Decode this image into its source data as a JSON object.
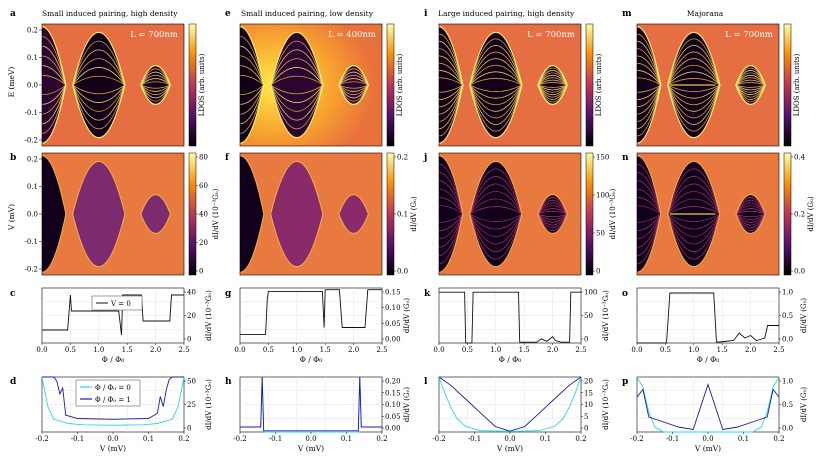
{
  "figure": {
    "colors": {
      "cyan": "#2ad7e6",
      "navy": "#1c1aa6",
      "gold": "#d9cf4f"
    },
    "columns": [
      {
        "title": "Small induced pairing, high density",
        "inset": "L = 700nm",
        "row_labels": [
          "a",
          "b",
          "c",
          "d"
        ]
      },
      {
        "title": "Small induced pairing, low density",
        "inset": "L = 400nm",
        "row_labels": [
          "e",
          "f",
          "g",
          "h"
        ]
      },
      {
        "title": "Large induced pairing, high density",
        "inset": "L = 700nm",
        "row_labels": [
          "i",
          "j",
          "k",
          "l"
        ]
      },
      {
        "title": "Majorana",
        "inset": "L = 700nm",
        "row_labels": [
          "m",
          "n",
          "o",
          "p"
        ]
      }
    ],
    "labels": {
      "energy_axis": "E (meV)",
      "bias_axis": "V (mV)",
      "ldos_colorbar": "LDOS (arb. units)",
      "flux_axis": "Φ / Φ₀",
      "legend_zero_bias": "V = 0",
      "legend_phi0": "Φ / Φ₀ = 0",
      "legend_phi1": "Φ / Φ₀ = 1"
    },
    "cond_labels": [
      "dI/dV (10⁻³G₀)",
      "dI/dV (G₀)",
      "dI/dV (10⁻³G₀)",
      "dI/dV (G₀)"
    ],
    "ticks": {
      "energy": [
        "0.2",
        "0.1",
        "0.0",
        "-0.1",
        "-0.2"
      ],
      "voltage": [
        "0.2",
        "0.1",
        "0.0",
        "-0.1",
        "-0.2"
      ],
      "flux": [
        "0.0",
        "0.5",
        "1.0",
        "1.5",
        "2.0",
        "2.5"
      ],
      "vline": [
        "-0.2",
        "-0.1",
        "0.0",
        "0.1",
        "0.2"
      ],
      "colorbar_b": [
        "80",
        "60",
        "40",
        "20",
        "0"
      ],
      "colorbar_f": [
        "0.2",
        "0.1",
        "0.0"
      ],
      "colorbar_j": [
        "150",
        "100",
        "50",
        "0"
      ],
      "colorbar_n": [
        "0.4",
        "0.2",
        "0.0"
      ],
      "c_right": [
        "40",
        "20",
        "0"
      ],
      "g_right": [
        "0.15",
        "0.10",
        "0.05",
        "0.00"
      ],
      "k_right": [
        "100",
        "50",
        "0"
      ],
      "o_right": [
        "1.0",
        "0.5",
        "0.0"
      ],
      "d_right": [
        "50",
        "25",
        "0"
      ],
      "h_right": [
        "0.20",
        "0.15",
        "0.10",
        "0.05",
        "0.00"
      ],
      "l_right": [
        "20",
        "15",
        "10",
        "5",
        "0"
      ],
      "p_right": [
        "1.0",
        "0.5",
        "0.0"
      ]
    }
  },
  "chart_data": [
    {
      "panel": "a",
      "type": "heatmap",
      "title": "Small induced pairing, high density",
      "xlabel": "Φ / Φ₀",
      "ylabel": "E (meV)",
      "colorbar": "LDOS (arb. units)",
      "xlim": [
        0,
        2.5
      ],
      "ylim": [
        -0.22,
        0.22
      ],
      "annotation": "L = 700nm",
      "lobes": [
        {
          "center": 1.0,
          "half_width": 0.45
        },
        {
          "center": 2.0,
          "half_width": 0.25
        }
      ]
    },
    {
      "panel": "b",
      "type": "heatmap",
      "xlabel": "Φ / Φ₀",
      "ylabel": "V (mV)",
      "colorbar": "dI/dV (10⁻³G₀)",
      "colorbar_range": [
        0,
        80
      ],
      "ylim": [
        -0.22,
        0.22
      ],
      "gap_half_height_mV": 0.2,
      "lobes": [
        {
          "center": 0.0,
          "half_width": 0.4,
          "half_height": 0.21
        },
        {
          "center": 1.0,
          "half_width": 0.45,
          "half_height": 0.19
        },
        {
          "center": 2.0,
          "half_width": 0.25,
          "half_height": 0.065
        }
      ]
    },
    {
      "panel": "c",
      "type": "line",
      "xlabel": "Φ / Φ₀",
      "ylabel_right": "dI/dV (10⁻³G₀)",
      "xlim": [
        0,
        2.5
      ],
      "ylim": [
        0,
        55
      ],
      "legend": [
        "V = 0"
      ],
      "series": [
        {
          "name": "V = 0",
          "x": [
            0.0,
            0.45,
            0.5,
            0.52,
            0.6,
            1.35,
            1.4,
            1.42,
            1.6,
            1.75,
            1.78,
            2.25,
            2.28,
            2.5
          ],
          "y": [
            13,
            13,
            48,
            32,
            32,
            32,
            8,
            48,
            48,
            48,
            22,
            22,
            48,
            48
          ]
        }
      ]
    },
    {
      "panel": "d",
      "type": "line",
      "xlabel": "V (mV)",
      "ylabel_right": "dI/dV (10⁻³G₀)",
      "xlim": [
        -0.24,
        0.24
      ],
      "ylim": [
        0,
        65
      ],
      "legend": [
        "Φ / Φ₀ = 0",
        "Φ / Φ₀ = 1"
      ],
      "series": [
        {
          "name": "Φ / Φ₀ = 0",
          "x": [
            -0.24,
            -0.22,
            -0.2,
            -0.15,
            -0.1,
            0.0,
            0.1,
            0.15,
            0.2,
            0.22,
            0.24
          ],
          "y": [
            65,
            30,
            15,
            10,
            8.5,
            8,
            8.5,
            10,
            15,
            30,
            65
          ]
        },
        {
          "name": "Φ / Φ₀ = 1",
          "x": [
            -0.24,
            -0.2,
            -0.19,
            -0.18,
            -0.17,
            -0.16,
            -0.12,
            0.0,
            0.12,
            0.15,
            0.16,
            0.17,
            0.18,
            0.19,
            0.2,
            0.24
          ],
          "y": [
            65,
            65,
            60,
            45,
            52,
            20,
            16,
            15,
            16,
            22,
            42,
            30,
            50,
            62,
            65,
            65
          ]
        }
      ]
    },
    {
      "panel": "e",
      "type": "heatmap",
      "title": "Small induced pairing, low density",
      "xlabel": "Φ / Φ₀",
      "ylabel": "E (meV)",
      "colorbar": "LDOS (arb. units)",
      "xlim": [
        0,
        2.5
      ],
      "ylim": [
        -0.22,
        0.22
      ],
      "annotation": "L = 400nm"
    },
    {
      "panel": "f",
      "type": "heatmap",
      "xlabel": "Φ / Φ₀",
      "ylabel": "V (mV)",
      "colorbar": "dI/dV (G₀)",
      "colorbar_range": [
        0,
        0.25
      ],
      "ylim": [
        -0.22,
        0.22
      ],
      "gap_half_height_mV": 0.2
    },
    {
      "panel": "g",
      "type": "line",
      "xlabel": "Φ / Φ₀",
      "ylabel_right": "dI/dV (G₀)",
      "xlim": [
        0,
        2.5
      ],
      "ylim": [
        0,
        0.16
      ],
      "series": [
        {
          "name": "V = 0",
          "x": [
            0.0,
            0.45,
            0.48,
            0.5,
            0.55,
            1.45,
            1.48,
            1.5,
            1.75,
            1.8,
            2.2,
            2.25,
            2.5
          ],
          "y": [
            0.025,
            0.025,
            0.13,
            0.15,
            0.15,
            0.15,
            0.045,
            0.155,
            0.155,
            0.045,
            0.045,
            0.155,
            0.155
          ]
        }
      ]
    },
    {
      "panel": "h",
      "type": "line",
      "xlabel": "V (mV)",
      "ylabel_right": "dI/dV (G₀)",
      "xlim": [
        -0.24,
        0.24
      ],
      "ylim": [
        0,
        0.22
      ],
      "series": [
        {
          "name": "Φ / Φ₀ = 0",
          "x": [
            -0.24,
            -0.17,
            -0.165,
            -0.16,
            0.16,
            0.165,
            0.17,
            0.24
          ],
          "y": [
            0.02,
            0.02,
            0.22,
            0.0,
            0.0,
            0.22,
            0.02,
            0.02
          ]
        },
        {
          "name": "Φ / Φ₀ = 1",
          "x": [
            -0.24,
            -0.17,
            -0.165,
            -0.16,
            0.16,
            0.165,
            0.17,
            0.24
          ],
          "y": [
            0.02,
            0.02,
            0.22,
            0.005,
            0.005,
            0.22,
            0.02,
            0.02
          ]
        }
      ]
    },
    {
      "panel": "i",
      "type": "heatmap",
      "title": "Large induced pairing, high density",
      "xlabel": "Φ / Φ₀",
      "ylabel": "E (meV)",
      "colorbar": "LDOS (arb. units)",
      "xlim": [
        0,
        2.5
      ],
      "ylim": [
        -0.22,
        0.22
      ],
      "annotation": "L = 700nm"
    },
    {
      "panel": "j",
      "type": "heatmap",
      "xlabel": "Φ / Φ₀",
      "ylabel": "V (mV)",
      "colorbar": "dI/dV (10⁻³G₀)",
      "colorbar_range": [
        0,
        180
      ],
      "ylim": [
        -0.22,
        0.22
      ]
    },
    {
      "panel": "k",
      "type": "line",
      "xlabel": "Φ / Φ₀",
      "ylabel_right": "dI/dV (10⁻³G₀)",
      "xlim": [
        0,
        2.5
      ],
      "ylim": [
        0,
        130
      ],
      "series": [
        {
          "name": "V = 0",
          "x": [
            0.0,
            0.45,
            0.47,
            0.58,
            0.6,
            1.4,
            1.42,
            1.72,
            1.8,
            1.9,
            2.0,
            2.05,
            2.15,
            2.2,
            2.3,
            2.32,
            2.5
          ],
          "y": [
            120,
            120,
            0,
            0,
            120,
            120,
            2,
            2,
            10,
            4,
            15,
            6,
            2,
            2,
            2,
            120,
            120
          ]
        }
      ]
    },
    {
      "panel": "l",
      "type": "line",
      "xlabel": "V (mV)",
      "ylabel_right": "dI/dV (10⁻³G₀)",
      "xlim": [
        -0.24,
        0.24
      ],
      "ylim": [
        0,
        20
      ],
      "series": [
        {
          "name": "Φ / Φ₀ = 0",
          "x": [
            -0.24,
            -0.22,
            -0.2,
            -0.18,
            -0.15,
            -0.1,
            0.0,
            0.1,
            0.15,
            0.18,
            0.2,
            0.22,
            0.24
          ],
          "y": [
            20,
            14,
            9,
            5,
            2,
            0.5,
            0.2,
            0.5,
            2,
            5,
            9,
            14,
            20
          ]
        },
        {
          "name": "Φ / Φ₀ = 1",
          "x": [
            -0.24,
            -0.2,
            -0.15,
            -0.1,
            -0.05,
            0.0,
            0.05,
            0.1,
            0.15,
            0.2,
            0.24
          ],
          "y": [
            20,
            17,
            12,
            7,
            2,
            0.3,
            2,
            7,
            12,
            17,
            20
          ]
        }
      ]
    },
    {
      "panel": "m",
      "type": "heatmap",
      "title": "Majorana",
      "xlabel": "Φ / Φ₀",
      "ylabel": "E (meV)",
      "colorbar": "LDOS (arb. units)",
      "xlim": [
        0,
        2.5
      ],
      "ylim": [
        -0.22,
        0.22
      ],
      "annotation": "L = 700nm"
    },
    {
      "panel": "n",
      "type": "heatmap",
      "xlabel": "Φ / Φ₀",
      "ylabel": "V (mV)",
      "colorbar": "dI/dV (G₀)",
      "colorbar_range": [
        0,
        0.5
      ],
      "ylim": [
        -0.22,
        0.22
      ]
    },
    {
      "panel": "o",
      "type": "line",
      "xlabel": "Φ / Φ₀",
      "ylabel_right": "dI/dV (G₀)",
      "xlim": [
        0,
        2.5
      ],
      "ylim": [
        0,
        1.1
      ],
      "series": [
        {
          "name": "V = 0",
          "x": [
            0.0,
            0.52,
            0.58,
            0.62,
            1.35,
            1.4,
            1.45,
            1.7,
            1.8,
            1.9,
            2.0,
            2.1,
            2.2,
            2.25,
            2.3,
            2.5
          ],
          "y": [
            0.0,
            0.0,
            1.0,
            1.0,
            1.0,
            0.02,
            0.02,
            0.05,
            0.2,
            0.1,
            0.15,
            0.05,
            0.08,
            0.1,
            0.35,
            0.35
          ]
        }
      ]
    },
    {
      "panel": "p",
      "type": "line",
      "xlabel": "V (mV)",
      "ylabel_right": "dI/dV (G₀)",
      "xlim": [
        -0.24,
        0.24
      ],
      "ylim": [
        0,
        1.1
      ],
      "series": [
        {
          "name": "Φ / Φ₀ = 0",
          "x": [
            -0.24,
            -0.22,
            -0.2,
            -0.18,
            -0.15,
            0.15,
            0.18,
            0.2,
            0.22,
            0.24
          ],
          "y": [
            1.1,
            0.9,
            0.4,
            0.1,
            0.0,
            0.0,
            0.1,
            0.4,
            0.9,
            1.1
          ]
        },
        {
          "name": "Φ / Φ₀ = 1",
          "x": [
            -0.24,
            -0.22,
            -0.2,
            -0.15,
            -0.1,
            -0.05,
            0.0,
            0.05,
            0.1,
            0.15,
            0.2,
            0.22,
            0.24
          ],
          "y": [
            0.7,
            0.85,
            0.3,
            0.2,
            0.1,
            0.05,
            0.95,
            0.05,
            0.1,
            0.2,
            0.3,
            0.85,
            0.7
          ]
        }
      ]
    }
  ]
}
